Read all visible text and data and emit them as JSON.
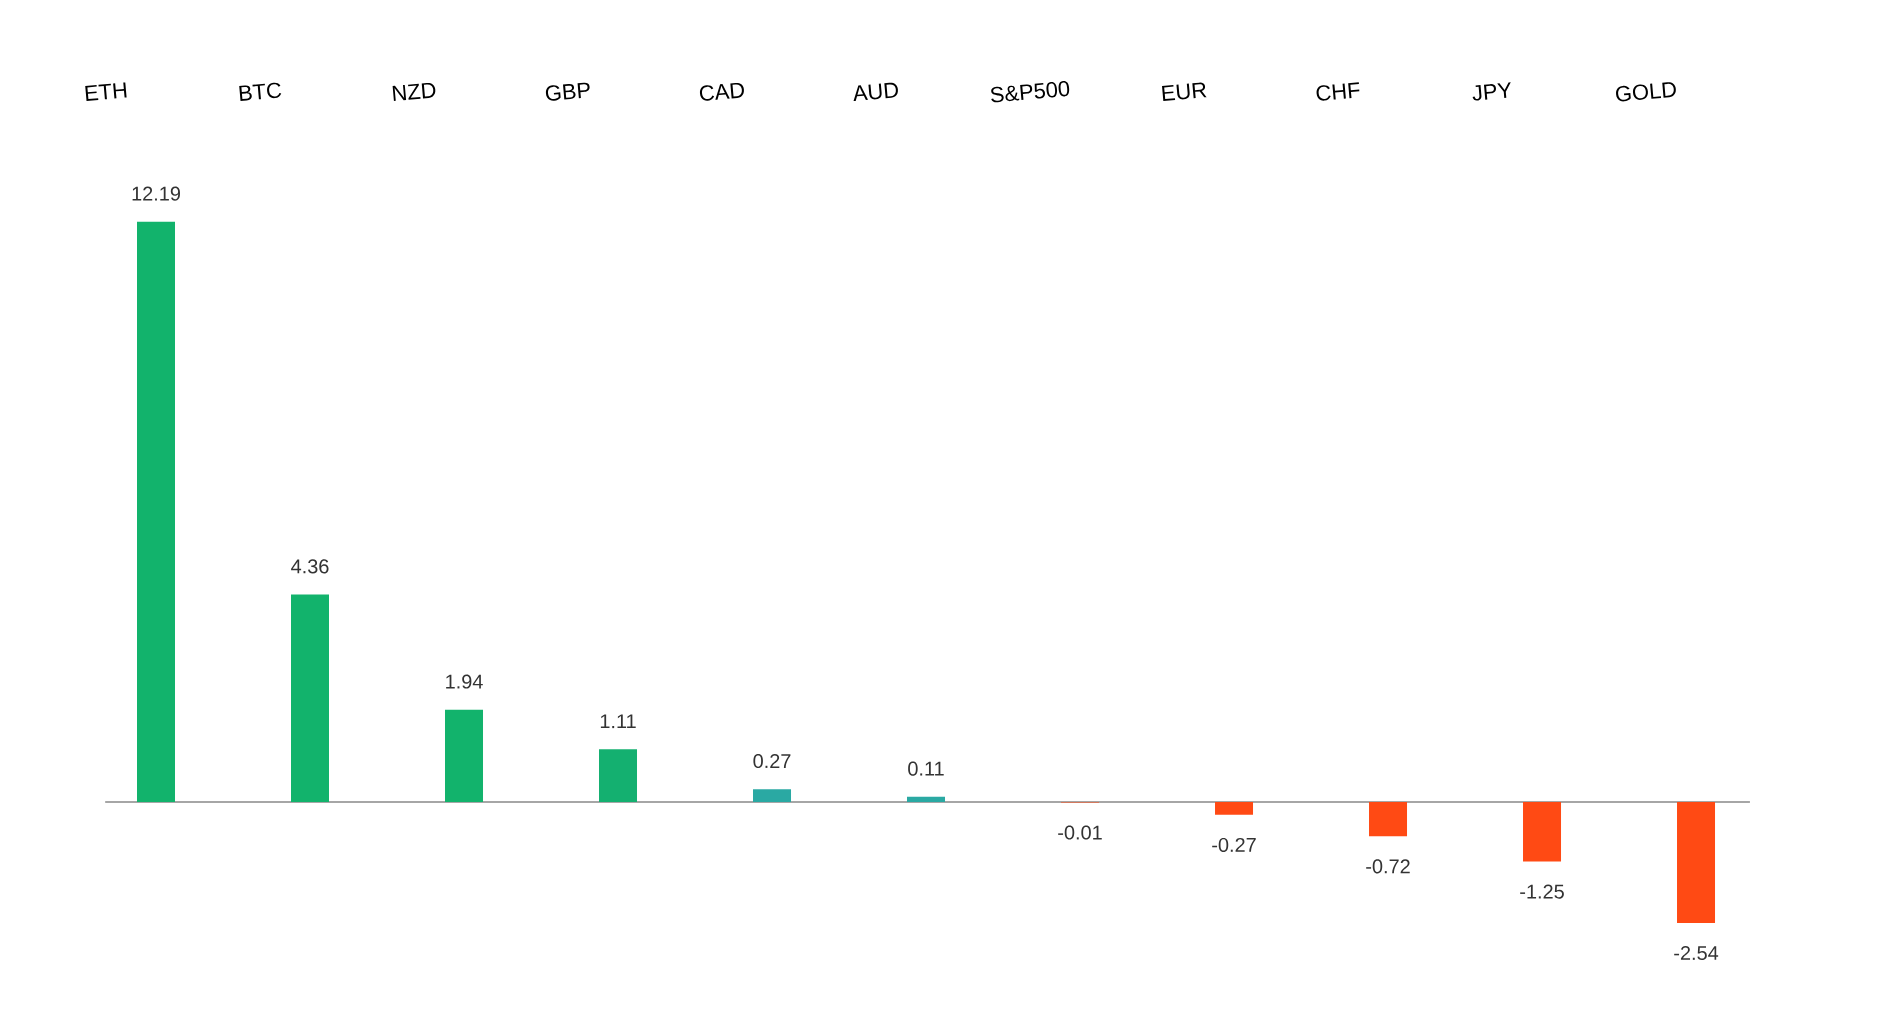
{
  "chart_data": {
    "type": "bar",
    "categories": [
      "ETH",
      "BTC",
      "NZD",
      "GBP",
      "CAD",
      "AUD",
      "S&P500",
      "EUR",
      "CHF",
      "JPY",
      "GOLD"
    ],
    "values": [
      12.19,
      4.36,
      1.94,
      1.11,
      0.27,
      0.11,
      -0.01,
      -0.27,
      -0.72,
      -1.25,
      -2.54
    ],
    "colors": [
      "#12b36c",
      "#12b36c",
      "#12b36c",
      "#14b070",
      "#2aa9a3",
      "#2aa9a3",
      "#ff4a14",
      "#ff4a14",
      "#ff4a14",
      "#ff4a14",
      "#ff4a14"
    ],
    "data_labels": true
  }
}
